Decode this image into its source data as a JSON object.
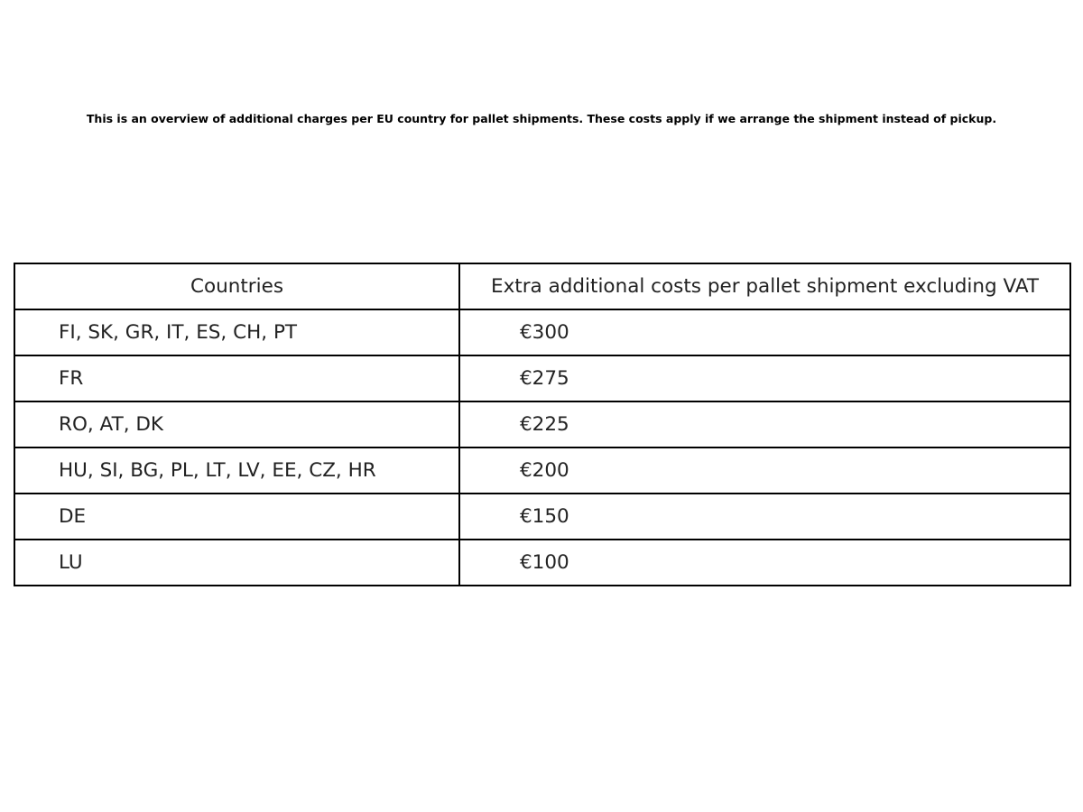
{
  "intro": "This is an overview of additional charges per EU country for pallet shipments. These costs apply if we arrange the shipment instead of pickup.",
  "table": {
    "headers": [
      "Countries",
      "Extra additional costs per pallet shipment excluding VAT"
    ],
    "rows": [
      [
        "FI, SK, GR, IT, ES, CH, PT",
        "€300"
      ],
      [
        "FR",
        "€275"
      ],
      [
        "RO, AT, DK",
        "€225"
      ],
      [
        "HU, SI, BG, PL, LT, LV, EE, CZ, HR",
        "€200"
      ],
      [
        "DE",
        "€150"
      ],
      [
        "LU",
        "€100"
      ]
    ]
  }
}
